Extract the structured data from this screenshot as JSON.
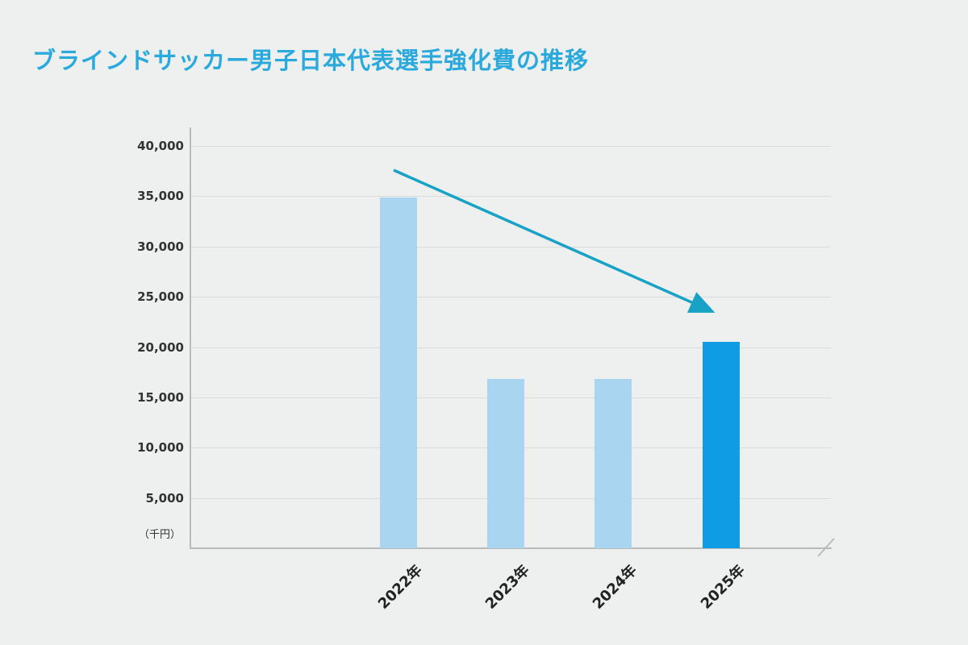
{
  "title": "ブラインドサッカー男子日本代表選手強化費の推移",
  "colors": {
    "title": "#2aa9dc",
    "bar_light": "#a9d5f0",
    "bar_highlight": "#0f9ce4",
    "arrow": "#18a2c6",
    "axis": "#b7bbba",
    "grid": "#d9dcdb",
    "background": "#edf0ee"
  },
  "chart_data": {
    "type": "bar",
    "title": "ブラインドサッカー男子日本代表選手強化費の推移",
    "unit_label": "（千円）",
    "categories": [
      "2022年",
      "2023年",
      "2024年",
      "2025年"
    ],
    "values": [
      34900,
      16800,
      16800,
      20500
    ],
    "bar_colors": [
      "#a9d5f0",
      "#a9d5f0",
      "#a9d5f0",
      "#0f9ce4"
    ],
    "ylim": [
      0,
      40000
    ],
    "yticks": [
      5000,
      10000,
      15000,
      20000,
      25000,
      30000,
      35000,
      40000
    ],
    "ytick_labels": [
      "5,000",
      "10,000",
      "15,000",
      "20,000",
      "25,000",
      "30,000",
      "35,000",
      "40,000"
    ],
    "grid": true,
    "legend": "none",
    "annotations": [
      {
        "type": "arrow",
        "meaning": "decline-trend-arrow",
        "from_value_area": "above 2022 bar",
        "to_value_area": "top of 2025 bar",
        "color": "#18a2c6"
      }
    ]
  }
}
